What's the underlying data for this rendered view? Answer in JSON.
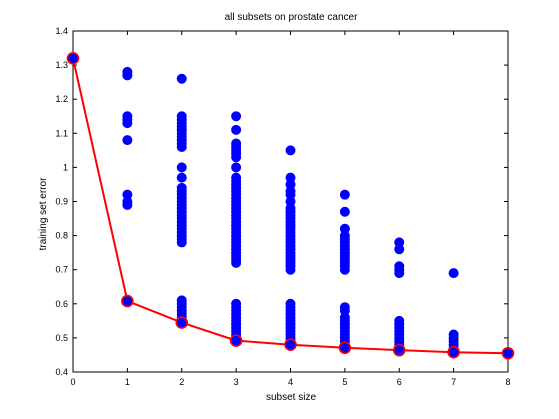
{
  "chart_data": {
    "type": "scatter",
    "title": "all subsets on prostate cancer",
    "xlabel": "subset size",
    "ylabel": "training set error",
    "xlim": [
      0,
      8
    ],
    "ylim": [
      0.4,
      1.4
    ],
    "xticks": [
      "0",
      "1",
      "2",
      "3",
      "4",
      "5",
      "6",
      "7",
      "8"
    ],
    "yticks": [
      "0.4",
      "0.5",
      "0.6",
      "0.7",
      "0.8",
      "0.9",
      "1",
      "1.1",
      "1.2",
      "1.3",
      "1.4"
    ],
    "grid": false,
    "colors": {
      "scatter": "#0000ff",
      "best_line": "#ff0000",
      "best_marker_edge": "#ff0000",
      "axes": "#000000"
    },
    "series": [
      {
        "type": "scatter",
        "points_by_x": [
          {
            "x": 0,
            "y": [
              1.32
            ]
          },
          {
            "x": 1,
            "y": [
              1.28,
              1.27,
              1.15,
              1.14,
              1.13,
              1.08,
              0.92,
              0.9,
              0.89,
              0.61
            ]
          },
          {
            "x": 2,
            "y": [
              1.26,
              1.15,
              1.14,
              1.13,
              1.12,
              1.11,
              1.1,
              1.09,
              1.08,
              1.07,
              1.06,
              1.0,
              0.97,
              0.94,
              0.93,
              0.92,
              0.91,
              0.9,
              0.89,
              0.88,
              0.87,
              0.86,
              0.85,
              0.84,
              0.83,
              0.82,
              0.81,
              0.8,
              0.79,
              0.78,
              0.61,
              0.6,
              0.59,
              0.58,
              0.57,
              0.56,
              0.55,
              0.545
            ]
          },
          {
            "x": 3,
            "y": [
              1.15,
              1.11,
              1.07,
              1.06,
              1.05,
              1.04,
              1.03,
              1.0,
              0.97,
              0.96,
              0.95,
              0.94,
              0.93,
              0.92,
              0.91,
              0.9,
              0.89,
              0.88,
              0.87,
              0.86,
              0.85,
              0.84,
              0.83,
              0.82,
              0.81,
              0.8,
              0.79,
              0.78,
              0.77,
              0.76,
              0.75,
              0.74,
              0.73,
              0.72,
              0.6,
              0.59,
              0.58,
              0.57,
              0.56,
              0.55,
              0.54,
              0.53,
              0.52,
              0.51,
              0.5,
              0.49
            ]
          },
          {
            "x": 4,
            "y": [
              1.05,
              0.97,
              0.95,
              0.93,
              0.92,
              0.9,
              0.88,
              0.87,
              0.86,
              0.85,
              0.84,
              0.83,
              0.82,
              0.81,
              0.8,
              0.79,
              0.78,
              0.77,
              0.76,
              0.75,
              0.74,
              0.73,
              0.72,
              0.71,
              0.7,
              0.6,
              0.59,
              0.58,
              0.57,
              0.56,
              0.55,
              0.54,
              0.53,
              0.52,
              0.51,
              0.5,
              0.49,
              0.48
            ]
          },
          {
            "x": 5,
            "y": [
              0.92,
              0.87,
              0.82,
              0.8,
              0.79,
              0.78,
              0.77,
              0.76,
              0.75,
              0.74,
              0.73,
              0.72,
              0.71,
              0.7,
              0.59,
              0.58,
              0.56,
              0.55,
              0.54,
              0.53,
              0.52,
              0.51,
              0.5,
              0.49,
              0.48,
              0.47
            ]
          },
          {
            "x": 6,
            "y": [
              0.78,
              0.76,
              0.71,
              0.7,
              0.69,
              0.55,
              0.54,
              0.53,
              0.52,
              0.51,
              0.5,
              0.49,
              0.48,
              0.47,
              0.46
            ]
          },
          {
            "x": 7,
            "y": [
              0.69,
              0.51,
              0.5,
              0.49,
              0.48,
              0.47,
              0.46,
              0.455
            ]
          },
          {
            "x": 8,
            "y": [
              0.455
            ]
          }
        ]
      },
      {
        "type": "line",
        "x": [
          0,
          1,
          2,
          3,
          4,
          5,
          6,
          7,
          8
        ],
        "y": [
          1.32,
          0.608,
          0.545,
          0.492,
          0.48,
          0.471,
          0.464,
          0.458,
          0.455
        ]
      }
    ]
  }
}
